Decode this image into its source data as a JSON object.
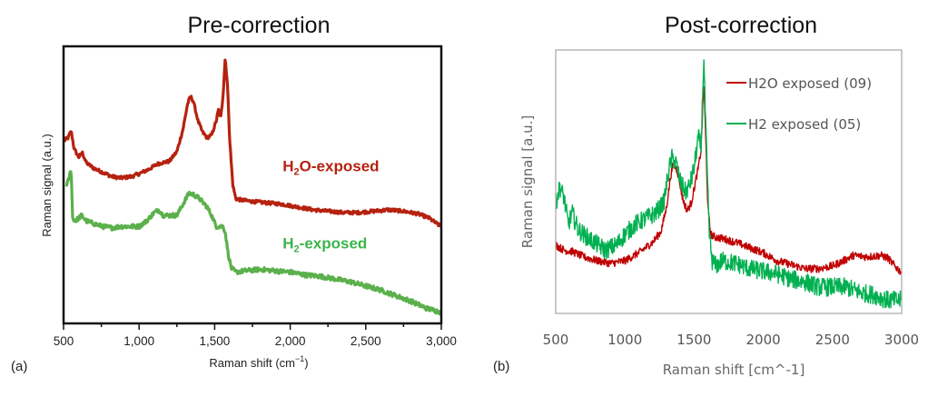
{
  "chart_data": [
    {
      "type": "line",
      "panel_label": "(a)",
      "title": "Pre-correction",
      "xlabel": "Raman shift (cm",
      "xlabel_sup": "−1",
      "xlabel_close": ")",
      "ylabel": "Raman signal (a.u.)",
      "xlim": [
        500,
        3000
      ],
      "ylim": [
        0,
        1
      ],
      "x_ticks": [
        500,
        1000,
        1500,
        2000,
        2500,
        3000
      ],
      "x_tick_labels": [
        "500",
        "1,000",
        "1,500",
        "2,000",
        "2,500",
        "3,000"
      ],
      "x_minor_step": 250,
      "grid": false,
      "legend": "inline annotations",
      "annotations": [
        {
          "text_main": "H",
          "sub": "2",
          "text_rest": "O-exposed",
          "color": "#b5220f",
          "anchor_x": 1950,
          "anchor_y": 0.55
        },
        {
          "text_main": "H",
          "sub": "2",
          "text_rest": "-exposed",
          "color": "#3cb44b",
          "anchor_x": 1950,
          "anchor_y": 0.27
        }
      ],
      "series": [
        {
          "name": "H2O-exposed",
          "color": "#b5220f",
          "x": [
            505,
            530,
            550,
            570,
            600,
            625,
            650,
            700,
            760,
            820,
            880,
            950,
            1000,
            1060,
            1120,
            1150,
            1200,
            1250,
            1290,
            1320,
            1340,
            1360,
            1390,
            1420,
            1450,
            1480,
            1510,
            1525,
            1540,
            1555,
            1570,
            1585,
            1600,
            1620,
            1640,
            1680,
            1750,
            1850,
            1950,
            2050,
            2150,
            2250,
            2350,
            2450,
            2550,
            2650,
            2750,
            2850,
            2920,
            2970,
            3000
          ],
          "y": [
            0.66,
            0.67,
            0.695,
            0.63,
            0.6,
            0.615,
            0.58,
            0.56,
            0.545,
            0.53,
            0.525,
            0.53,
            0.54,
            0.555,
            0.575,
            0.58,
            0.585,
            0.62,
            0.7,
            0.79,
            0.82,
            0.8,
            0.73,
            0.69,
            0.67,
            0.68,
            0.73,
            0.77,
            0.74,
            0.82,
            0.96,
            0.86,
            0.66,
            0.5,
            0.45,
            0.445,
            0.44,
            0.435,
            0.43,
            0.42,
            0.41,
            0.405,
            0.4,
            0.4,
            0.405,
            0.41,
            0.405,
            0.395,
            0.38,
            0.36,
            0.35
          ]
        },
        {
          "name": "H2-exposed",
          "color": "#5bb04b",
          "x": [
            520,
            535,
            550,
            560,
            580,
            620,
            650,
            700,
            760,
            820,
            880,
            950,
            1000,
            1050,
            1100,
            1130,
            1160,
            1200,
            1250,
            1290,
            1330,
            1360,
            1400,
            1450,
            1480,
            1510,
            1540,
            1555,
            1570,
            1590,
            1610,
            1640,
            1700,
            1800,
            1900,
            2000,
            2100,
            2200,
            2300,
            2400,
            2500,
            2600,
            2700,
            2800,
            2900,
            3000
          ],
          "y": [
            0.5,
            0.52,
            0.56,
            0.38,
            0.37,
            0.39,
            0.37,
            0.36,
            0.35,
            0.345,
            0.35,
            0.35,
            0.35,
            0.37,
            0.4,
            0.41,
            0.39,
            0.39,
            0.39,
            0.43,
            0.47,
            0.465,
            0.45,
            0.42,
            0.39,
            0.35,
            0.35,
            0.35,
            0.33,
            0.25,
            0.2,
            0.185,
            0.19,
            0.195,
            0.19,
            0.185,
            0.175,
            0.17,
            0.16,
            0.15,
            0.135,
            0.12,
            0.1,
            0.08,
            0.055,
            0.04
          ]
        }
      ]
    },
    {
      "type": "line",
      "panel_label": "(b)",
      "title": "Post-correction",
      "xlabel": "Raman shift [cm^-1]",
      "ylabel": "Raman signal [a.u.]",
      "xlim": [
        500,
        3000
      ],
      "ylim": [
        0,
        1
      ],
      "x_ticks": [
        500,
        1000,
        1500,
        2000,
        2500,
        3000
      ],
      "x_tick_labels": [
        "500",
        "1000",
        "1500",
        "2000",
        "2500",
        "3000"
      ],
      "grid": false,
      "legend": "top-right",
      "series": [
        {
          "name": "H2O exposed (09)",
          "color": "#c00000",
          "x": [
            500,
            560,
            620,
            700,
            800,
            900,
            1000,
            1100,
            1200,
            1260,
            1300,
            1330,
            1350,
            1380,
            1420,
            1450,
            1480,
            1510,
            1530,
            1550,
            1570,
            1585,
            1600,
            1620,
            1650,
            1700,
            1800,
            1900,
            2000,
            2100,
            2200,
            2300,
            2400,
            2500,
            2580,
            2650,
            2750,
            2850,
            2900,
            2950,
            3000
          ],
          "y": [
            0.26,
            0.24,
            0.235,
            0.215,
            0.2,
            0.19,
            0.2,
            0.23,
            0.27,
            0.31,
            0.4,
            0.52,
            0.57,
            0.54,
            0.43,
            0.39,
            0.42,
            0.5,
            0.55,
            0.62,
            0.88,
            0.65,
            0.4,
            0.3,
            0.29,
            0.285,
            0.27,
            0.25,
            0.23,
            0.2,
            0.185,
            0.17,
            0.17,
            0.18,
            0.2,
            0.22,
            0.215,
            0.22,
            0.21,
            0.18,
            0.155
          ]
        },
        {
          "name": "H2 exposed (05)",
          "color": "#00b050",
          "x": [
            500,
            530,
            560,
            590,
            620,
            660,
            700,
            780,
            860,
            940,
            1000,
            1080,
            1150,
            1220,
            1280,
            1320,
            1340,
            1370,
            1400,
            1440,
            1470,
            1500,
            1530,
            1550,
            1570,
            1590,
            1610,
            1630,
            1660,
            1700,
            1800,
            1900,
            2000,
            2100,
            2200,
            2300,
            2400,
            2500,
            2600,
            2700,
            2800,
            2900,
            3000
          ],
          "y": [
            0.42,
            0.48,
            0.44,
            0.34,
            0.38,
            0.32,
            0.3,
            0.27,
            0.24,
            0.26,
            0.3,
            0.34,
            0.36,
            0.38,
            0.42,
            0.55,
            0.59,
            0.57,
            0.5,
            0.46,
            0.49,
            0.55,
            0.67,
            0.63,
            0.97,
            0.6,
            0.3,
            0.2,
            0.18,
            0.2,
            0.19,
            0.17,
            0.16,
            0.15,
            0.13,
            0.12,
            0.1,
            0.1,
            0.1,
            0.08,
            0.07,
            0.05,
            0.05
          ]
        }
      ]
    }
  ]
}
